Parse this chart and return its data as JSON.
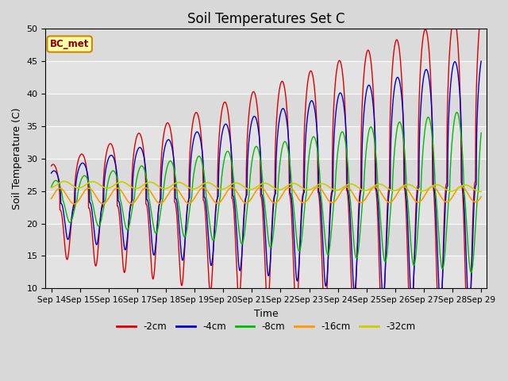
{
  "title": "Soil Temperatures Set C",
  "xlabel": "Time",
  "ylabel": "Soil Temperature (C)",
  "ylim": [
    10,
    50
  ],
  "annotation": "BC_met",
  "legend": [
    "-2cm",
    "-4cm",
    "-8cm",
    "-16cm",
    "-32cm"
  ],
  "colors": [
    "#dd0000",
    "#0000cc",
    "#00bb00",
    "#ff9900",
    "#cccc00"
  ],
  "background_color": "#d8d8d8",
  "plot_bg": "#e8e8e8",
  "x_tick_labels": [
    "Sep 14",
    "Sep 15",
    "Sep 16",
    "Sep 17",
    "Sep 18",
    "Sep 19",
    "Sep 20",
    "Sep 21",
    "Sep 22",
    "Sep 23",
    "Sep 24",
    "Sep 25",
    "Sep 26",
    "Sep 27",
    "Sep 28",
    "Sep 29"
  ],
  "title_fontsize": 12,
  "label_fontsize": 9,
  "tick_fontsize": 7.5
}
